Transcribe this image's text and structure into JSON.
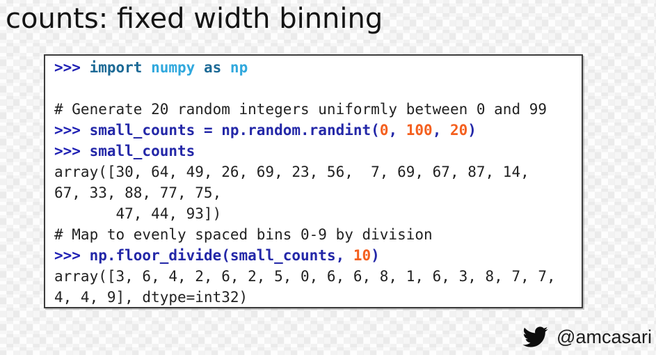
{
  "slide": {
    "title": "counts: fixed width binning",
    "footer": {
      "icon": "twitter-bird-icon",
      "handle": "@amcasari"
    }
  },
  "colors": {
    "prompt": "#2021b4",
    "keyword": "#1d6a96",
    "module": "#30a8dd",
    "code": "#2428a8",
    "number": "#f4601f",
    "plain": "#222222",
    "box_border": "#3c3c3c",
    "box_background": "#ffffff",
    "slide_background": "#fdfdfd",
    "title_color": "#141414",
    "icon_color": "#0d0d0d"
  },
  "code_block": {
    "lines": [
      [
        {
          "t": ">>> ",
          "s": "prompt"
        },
        {
          "t": "import",
          "s": "kw"
        },
        {
          "t": " ",
          "s": "out"
        },
        {
          "t": "numpy",
          "s": "mod"
        },
        {
          "t": " ",
          "s": "out"
        },
        {
          "t": "as",
          "s": "kw"
        },
        {
          "t": " ",
          "s": "out"
        },
        {
          "t": "np",
          "s": "mod"
        }
      ],
      [],
      [
        {
          "t": "# Generate 20 random integers uniformly between 0 and 99",
          "s": "out"
        }
      ],
      [
        {
          "t": ">>> ",
          "s": "prompt"
        },
        {
          "t": "small_counts = np.random.randint(",
          "s": "code"
        },
        {
          "t": "0",
          "s": "num"
        },
        {
          "t": ", ",
          "s": "code"
        },
        {
          "t": "100",
          "s": "num"
        },
        {
          "t": ", ",
          "s": "code"
        },
        {
          "t": "20",
          "s": "num"
        },
        {
          "t": ")",
          "s": "code"
        }
      ],
      [
        {
          "t": ">>> ",
          "s": "prompt"
        },
        {
          "t": "small_counts",
          "s": "code"
        }
      ],
      [
        {
          "t": "array([30, 64, 49, 26, 69, 23, 56,  7, 69, 67, 87, 14,",
          "s": "out"
        }
      ],
      [
        {
          "t": "67, 33, 88, 77, 75,",
          "s": "out"
        }
      ],
      [
        {
          "t": "       47, 44, 93])",
          "s": "out"
        }
      ],
      [
        {
          "t": "# Map to evenly spaced bins 0-9 by division",
          "s": "out"
        }
      ],
      [
        {
          "t": ">>> ",
          "s": "prompt"
        },
        {
          "t": "np.floor_divide(small_counts, ",
          "s": "code"
        },
        {
          "t": "10",
          "s": "num"
        },
        {
          "t": ")",
          "s": "code"
        }
      ],
      [
        {
          "t": "array([3, 6, 4, 2, 6, 2, 5, 0, 6, 6, 8, 1, 6, 3, 8, 7, 7,",
          "s": "out"
        }
      ],
      [
        {
          "t": "4, 4, 9], dtype=int32)",
          "s": "out"
        }
      ]
    ]
  }
}
